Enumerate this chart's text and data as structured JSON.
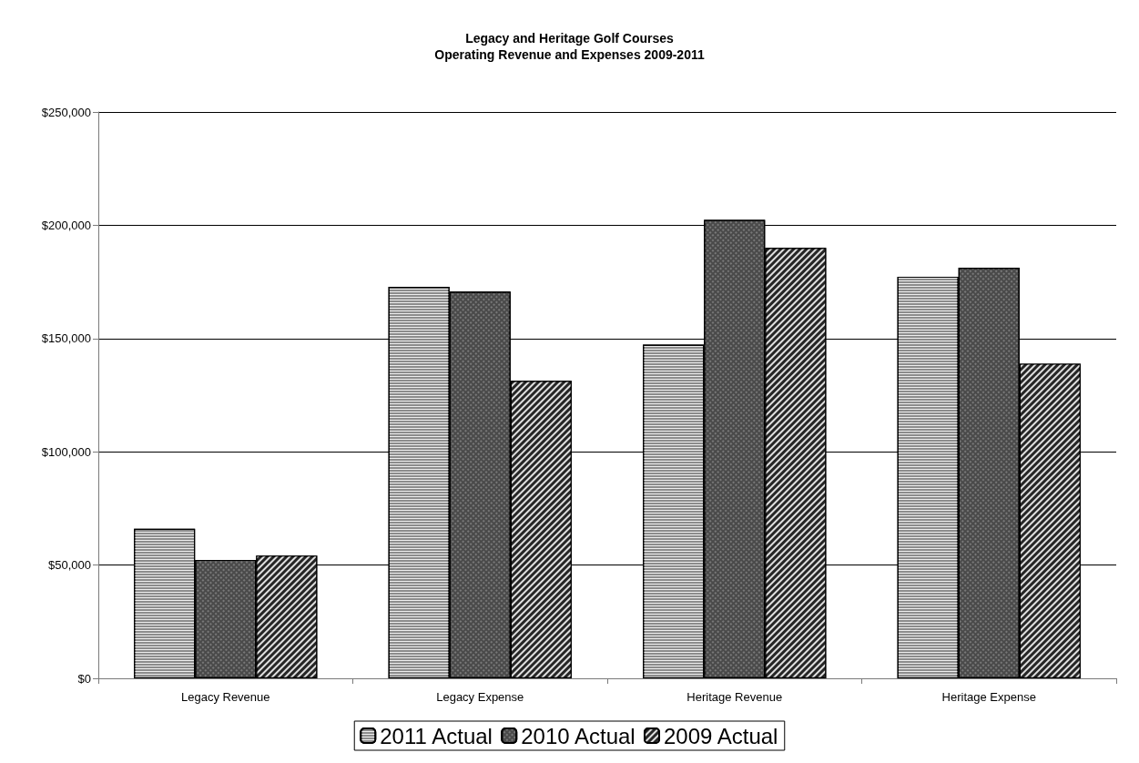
{
  "chart_data": {
    "type": "bar",
    "title": "Legacy and Heritage Golf Courses",
    "subtitle": "Operating Revenue and Expenses 2009-2011",
    "categories": [
      "Legacy Revenue",
      "Legacy Expense",
      "Heritage Revenue",
      "Heritage Expense"
    ],
    "series": [
      {
        "name": "2011 Actual",
        "color": "#8c8c8c",
        "values": [
          66000,
          172800,
          147300,
          177300
        ]
      },
      {
        "name": "2010 Actual",
        "color": "#4a4a4a",
        "values": [
          52300,
          170700,
          202400,
          181300
        ]
      },
      {
        "name": "2009 Actual",
        "color": "#262626",
        "values": [
          54200,
          131300,
          190000,
          138900
        ]
      }
    ],
    "ylim": [
      0,
      250000
    ],
    "yticks": [
      {
        "value": 0,
        "label": "$0"
      },
      {
        "value": 50000,
        "label": "$50,000"
      },
      {
        "value": 100000,
        "label": "$100,000"
      },
      {
        "value": 150000,
        "label": "$150,000"
      },
      {
        "value": 200000,
        "label": "$200,000"
      },
      {
        "value": 250000,
        "label": "$250,000"
      }
    ],
    "grid": "y",
    "legend": "bottom"
  }
}
